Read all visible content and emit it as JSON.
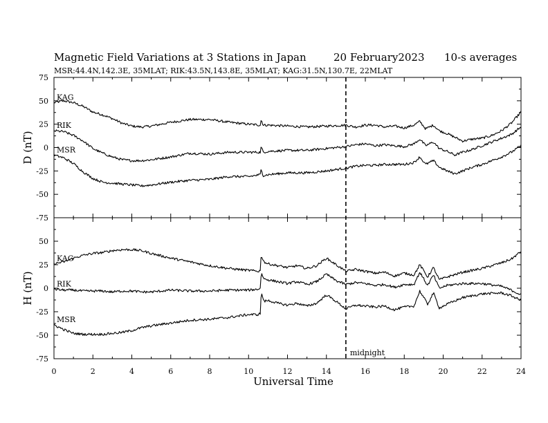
{
  "chart_data": {
    "type": "line",
    "title": "Magnetic Field Variations at 3 Stations in Japan",
    "date": "20 February2023",
    "averaging": "10-s averages",
    "subtitle": "MSR:44.4N,142.3E, 35MLAT;  RIK:43.5N,143.8E, 35MLAT;  KAG:31.5N,130.7E, 22MLAT",
    "xlabel": "Universal Time",
    "xlim": [
      0,
      24
    ],
    "x_ticks": [
      "0",
      "2",
      "4",
      "6",
      "8",
      "10",
      "12",
      "14",
      "16",
      "18",
      "20",
      "22",
      "24"
    ],
    "grid": false,
    "annotation": {
      "x": 15,
      "text": "midnight"
    },
    "panels": [
      {
        "ylabel": "D (nT)",
        "ylim": [
          -75,
          75
        ],
        "y_ticks": [
          "75",
          "50",
          "25",
          "0",
          "-25",
          "-50",
          "-75"
        ],
        "series": [
          {
            "name": "KAG",
            "x": [
              0,
              0.5,
              1,
              1.5,
              2,
              2.5,
              3,
              3.5,
              4,
              4.5,
              5,
              6,
              7,
              8,
              9,
              10,
              10.6,
              10.65,
              10.75,
              11,
              12,
              13,
              14,
              15,
              15.5,
              16,
              16.5,
              17,
              17.5,
              18,
              18.5,
              18.8,
              19.1,
              19.5,
              19.8,
              20.2,
              20.6,
              21,
              21.5,
              22,
              22.5,
              23,
              23.5,
              24
            ],
            "y": [
              48,
              50,
              48,
              44,
              38,
              35,
              31,
              26,
              23,
              22,
              23,
              27,
              30,
              30,
              27,
              25,
              24,
              30,
              24,
              24,
              23,
              22,
              23,
              24,
              22,
              24,
              24,
              22,
              23,
              21,
              24,
              28,
              20,
              24,
              18,
              15,
              11,
              7,
              9,
              10,
              13,
              18,
              26,
              38
            ]
          },
          {
            "name": "RIK",
            "x": [
              0,
              0.5,
              1,
              1.5,
              2,
              2.5,
              3,
              3.5,
              4,
              4.5,
              5,
              6,
              7,
              8,
              9,
              10,
              10.6,
              10.65,
              10.75,
              11,
              12,
              13,
              14,
              15,
              15.5,
              16,
              16.5,
              17,
              17.5,
              18,
              18.5,
              18.8,
              19.1,
              19.5,
              19.8,
              20.2,
              20.6,
              21,
              21.5,
              22,
              22.5,
              23,
              23.5,
              24
            ],
            "y": [
              18,
              17,
              13,
              7,
              -1,
              -6,
              -10,
              -13,
              -14,
              -14,
              -13,
              -10,
              -6,
              -7,
              -5,
              -5,
              -5,
              1,
              -5,
              -4,
              -3,
              -3,
              -1,
              1,
              3,
              4,
              2,
              3,
              2,
              1,
              4,
              9,
              2,
              6,
              -1,
              -4,
              -8,
              -5,
              -2,
              2,
              6,
              10,
              14,
              22
            ]
          },
          {
            "name": "MSR",
            "x": [
              0,
              0.5,
              1,
              1.5,
              2,
              2.5,
              3,
              3.5,
              4,
              4.5,
              5,
              6,
              7,
              8,
              9,
              10,
              10.6,
              10.65,
              10.75,
              11,
              12,
              13,
              14,
              15,
              15.5,
              16,
              16.5,
              17,
              17.5,
              18,
              18.5,
              18.8,
              19.1,
              19.5,
              19.8,
              20.2,
              20.6,
              21,
              21.5,
              22,
              22.5,
              23,
              23.5,
              24
            ],
            "y": [
              -8,
              -11,
              -17,
              -26,
              -33,
              -37,
              -38,
              -39,
              -40,
              -41,
              -40,
              -37,
              -35,
              -34,
              -31,
              -31,
              -29,
              -23,
              -30,
              -29,
              -27,
              -27,
              -25,
              -22,
              -20,
              -19,
              -19,
              -18,
              -18,
              -18,
              -16,
              -10,
              -18,
              -14,
              -21,
              -25,
              -28,
              -25,
              -21,
              -18,
              -14,
              -10,
              -5,
              2
            ]
          }
        ]
      },
      {
        "ylabel": "H (nT)",
        "ylim": [
          -75,
          75
        ],
        "y_ticks": [
          "50",
          "25",
          "0",
          "-25",
          "-50",
          "-75"
        ],
        "series": [
          {
            "name": "KAG",
            "x": [
              0,
              0.5,
              1,
              1.5,
              2,
              2.5,
              3,
              3.5,
              4,
              4.5,
              5,
              6,
              7,
              8,
              9,
              10,
              10.5,
              10.6,
              10.65,
              10.8,
              11,
              11.5,
              12,
              12.5,
              13,
              13.5,
              14,
              14.5,
              15,
              15.5,
              16,
              16.5,
              17,
              17.5,
              18,
              18.5,
              18.8,
              19.2,
              19.5,
              19.8,
              20.2,
              21,
              22,
              23,
              23.5,
              24
            ],
            "y": [
              26,
              28,
              32,
              35,
              37,
              38,
              40,
              41,
              41,
              40,
              37,
              32,
              28,
              24,
              21,
              19,
              18,
              19,
              35,
              28,
              26,
              24,
              22,
              24,
              21,
              24,
              32,
              25,
              18,
              20,
              18,
              16,
              17,
              13,
              16,
              14,
              25,
              12,
              22,
              9,
              12,
              17,
              21,
              27,
              31,
              39
            ]
          },
          {
            "name": "RIK",
            "x": [
              0,
              0.5,
              1,
              1.5,
              2,
              2.5,
              3,
              3.5,
              4,
              4.5,
              5,
              6,
              7,
              8,
              9,
              10,
              10.5,
              10.6,
              10.65,
              10.8,
              11,
              11.5,
              12,
              12.5,
              13,
              13.5,
              14,
              14.5,
              15,
              15.5,
              16,
              16.5,
              17,
              17.5,
              18,
              18.5,
              18.8,
              19.2,
              19.5,
              19.8,
              20.2,
              21,
              22,
              23,
              23.5,
              24
            ],
            "y": [
              -1,
              -2,
              -2,
              -3,
              -3,
              -3,
              -4,
              -3,
              -3,
              -4,
              -4,
              -2,
              -3,
              -3,
              -2,
              -2,
              -1,
              0,
              16,
              10,
              9,
              7,
              5,
              7,
              4,
              7,
              15,
              8,
              4,
              6,
              5,
              3,
              4,
              1,
              4,
              4,
              17,
              3,
              14,
              0,
              3,
              5,
              5,
              2,
              -2,
              -7
            ]
          },
          {
            "name": "MSR",
            "x": [
              0,
              0.5,
              1,
              1.5,
              2,
              2.5,
              3,
              3.5,
              4,
              4.5,
              5,
              6,
              7,
              8,
              9,
              10,
              10.5,
              10.6,
              10.65,
              10.8,
              11,
              11.5,
              12,
              12.5,
              13,
              13.5,
              14,
              14.5,
              15,
              15.5,
              16,
              16.5,
              17,
              17.5,
              18,
              18.5,
              18.8,
              19.2,
              19.5,
              19.8,
              20.2,
              21,
              22,
              23,
              23.5,
              24
            ],
            "y": [
              -39,
              -44,
              -48,
              -49,
              -49,
              -49,
              -48,
              -47,
              -45,
              -42,
              -40,
              -37,
              -34,
              -33,
              -31,
              -28,
              -28,
              -27,
              -5,
              -14,
              -13,
              -16,
              -18,
              -16,
              -19,
              -16,
              -7,
              -14,
              -22,
              -18,
              -19,
              -20,
              -19,
              -23,
              -20,
              -19,
              -3,
              -17,
              -5,
              -21,
              -17,
              -10,
              -6,
              -5,
              -8,
              -13
            ]
          }
        ]
      }
    ]
  }
}
